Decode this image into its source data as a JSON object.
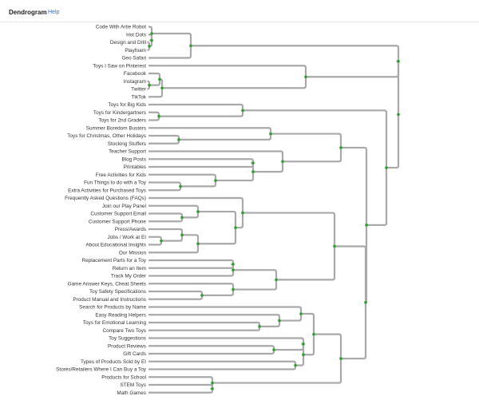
{
  "header": {
    "title": "Dendrogram",
    "help_label": "Help"
  },
  "colors": {
    "link": "#a9a9a9",
    "node": "#2e9e2e",
    "text": "#333333",
    "help": "#2f6fd6"
  },
  "leaves": [
    "Code With Artie Robot",
    "Hot Dots",
    "Design and Drill",
    "Playfoam",
    "Geo Safari",
    "Toys I Saw on Pinterest",
    "Facebook",
    "Instagram",
    "Twitter",
    "TikTok",
    "Toys for Big Kids",
    "Toys for Kindergartners",
    "Toys for 2nd Graders",
    "Summer Boredom Busters",
    "Toys for Christmas, Other Holidays",
    "Stocking Stuffers",
    "Teacher Support",
    "Blog Posts",
    "Printables",
    "Free Activities for Kids",
    "Fun Things to do with a Toy",
    "Extra Activities for Purchased Toys",
    "Frequently Asked Questions (FAQs)",
    "Join our Play Panel",
    "Customer Support Email",
    "Customer Support Phone",
    "Press/Awards",
    "Jobs / Work at EI",
    "About Educational Insights",
    "Our Mission",
    "Replacement Parts for a Toy",
    "Return an Item",
    "Track My Order",
    "Game Answer Keys, Cheat Sheets",
    "Toy Safety Specifications",
    "Product Manual and Instructions",
    "Search for Products by Name",
    "Easy Reading Helpers",
    "Toys for Emotional Learning",
    "Compare Two Toys",
    "Toy Suggestions",
    "Product Reviews",
    "Gift Cards",
    "Types of Products Sold by EI",
    "Stores/Retailers Where I Can Buy a Toy",
    "Products for School",
    "STEM Toys",
    "Math Games"
  ]
}
